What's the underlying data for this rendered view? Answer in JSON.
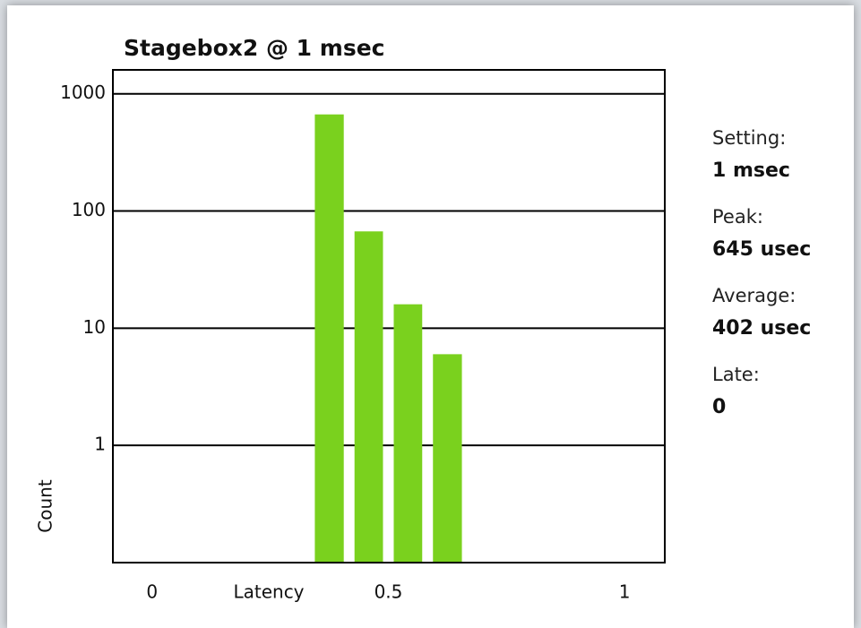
{
  "chart_data": {
    "type": "histogram",
    "title": "Stagebox2 @ 1 msec",
    "x_label": "Latency",
    "y_label": "Count",
    "bins": [
      0.333,
      0.417,
      0.5,
      0.583,
      0.667
    ],
    "values": [
      667,
      67,
      16,
      6
    ],
    "color": "#7ad11e",
    "xlim": [
      -0.083,
      1.085
    ],
    "xticks": [
      0,
      0.5,
      1
    ],
    "ylim": [
      0.1,
      1600
    ],
    "yticks": [
      1,
      10,
      100,
      1000
    ],
    "log_y": true,
    "grid": true
  },
  "stats": [
    {
      "label": "Setting:",
      "value": "1 msec"
    },
    {
      "label": "Peak:",
      "value": "645 usec"
    },
    {
      "label": "Average:",
      "value": "402 usec"
    },
    {
      "label": "Late:",
      "value": "0"
    }
  ]
}
